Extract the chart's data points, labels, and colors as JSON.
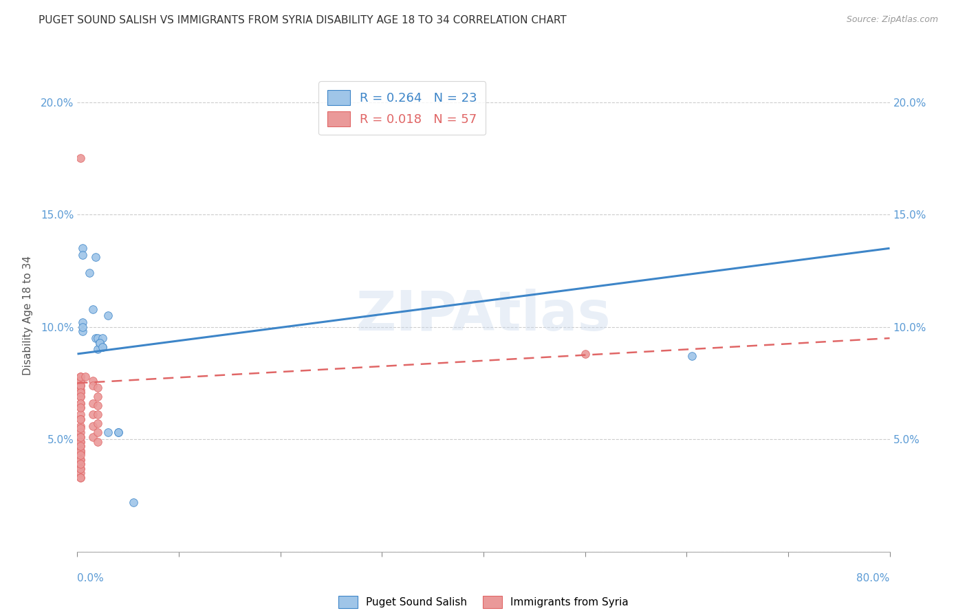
{
  "title": "PUGET SOUND SALISH VS IMMIGRANTS FROM SYRIA DISABILITY AGE 18 TO 34 CORRELATION CHART",
  "source": "Source: ZipAtlas.com",
  "ylabel": "Disability Age 18 to 34",
  "xlim": [
    0.0,
    0.8
  ],
  "ylim": [
    0.0,
    0.21
  ],
  "xticks": [
    0.0,
    0.1,
    0.2,
    0.3,
    0.4,
    0.5,
    0.6,
    0.7,
    0.8
  ],
  "xticklabels_bottom_left": "0.0%",
  "xticklabels_bottom_right": "80.0%",
  "yticks": [
    0.0,
    0.05,
    0.1,
    0.15,
    0.2
  ],
  "yticklabels": [
    "",
    "5.0%",
    "10.0%",
    "15.0%",
    "20.0%"
  ],
  "blue_color": "#9fc5e8",
  "pink_color": "#ea9999",
  "blue_line_color": "#3d85c8",
  "pink_line_color": "#e06666",
  "legend_R_blue": "R = 0.264",
  "legend_N_blue": "N = 23",
  "legend_R_pink": "R = 0.018",
  "legend_N_pink": "N = 57",
  "blue_scatter_x": [
    0.005,
    0.018,
    0.012,
    0.015,
    0.005,
    0.022,
    0.025,
    0.018,
    0.02,
    0.022,
    0.02,
    0.025,
    0.03,
    0.03,
    0.022,
    0.025,
    0.04,
    0.04,
    0.055,
    0.605,
    0.005,
    0.005,
    0.005
  ],
  "blue_scatter_y": [
    0.098,
    0.131,
    0.124,
    0.108,
    0.102,
    0.091,
    0.091,
    0.095,
    0.095,
    0.093,
    0.09,
    0.095,
    0.105,
    0.053,
    0.093,
    0.091,
    0.053,
    0.053,
    0.022,
    0.087,
    0.1,
    0.135,
    0.132
  ],
  "pink_scatter_x": [
    0.003,
    0.003,
    0.003,
    0.003,
    0.003,
    0.003,
    0.003,
    0.003,
    0.003,
    0.003,
    0.003,
    0.003,
    0.003,
    0.003,
    0.003,
    0.003,
    0.003,
    0.003,
    0.003,
    0.003,
    0.003,
    0.003,
    0.003,
    0.003,
    0.003,
    0.003,
    0.003,
    0.003,
    0.003,
    0.003,
    0.003,
    0.003,
    0.003,
    0.003,
    0.003,
    0.003,
    0.003,
    0.003,
    0.003,
    0.003,
    0.003,
    0.008,
    0.015,
    0.015,
    0.015,
    0.015,
    0.015,
    0.015,
    0.02,
    0.02,
    0.02,
    0.02,
    0.02,
    0.02,
    0.02,
    0.5,
    0.003
  ],
  "pink_scatter_y": [
    0.072,
    0.074,
    0.076,
    0.078,
    0.074,
    0.071,
    0.069,
    0.066,
    0.064,
    0.061,
    0.059,
    0.056,
    0.053,
    0.051,
    0.049,
    0.047,
    0.045,
    0.044,
    0.041,
    0.039,
    0.037,
    0.035,
    0.033,
    0.076,
    0.078,
    0.074,
    0.071,
    0.069,
    0.066,
    0.064,
    0.049,
    0.045,
    0.041,
    0.037,
    0.033,
    0.039,
    0.043,
    0.047,
    0.051,
    0.055,
    0.059,
    0.078,
    0.076,
    0.074,
    0.066,
    0.061,
    0.056,
    0.051,
    0.073,
    0.069,
    0.065,
    0.061,
    0.057,
    0.053,
    0.049,
    0.088,
    0.175
  ],
  "blue_line_x": [
    0.0,
    0.8
  ],
  "blue_line_y": [
    0.088,
    0.135
  ],
  "pink_line_x": [
    0.0,
    0.8
  ],
  "pink_line_y": [
    0.075,
    0.095
  ],
  "background_color": "#ffffff",
  "grid_color": "#cccccc",
  "tick_color": "#5b9bd5",
  "label_color": "#555555"
}
